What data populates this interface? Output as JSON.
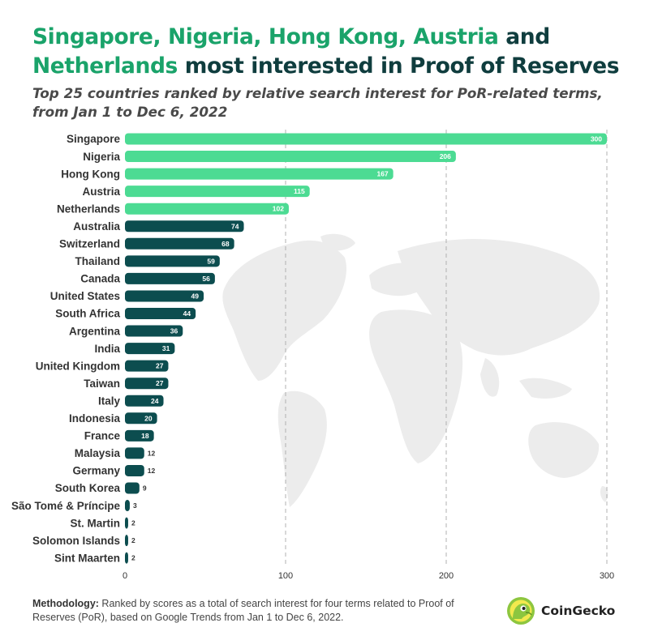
{
  "title": {
    "part1": "Singapore, Nigeria, Hong Kong, Austria",
    "part2": " and ",
    "part3": "Netherlands",
    "part4": " most interested in Proof of Reserves"
  },
  "subtitle": "Top 25 countries ranked by relative search interest for PoR-related terms, from Jan 1 to Dec 6, 2022",
  "methodology": {
    "label": "Methodology:",
    "text": " Ranked by scores as a total of search interest for four terms related to Proof of Reserves (PoR), based on Google Trends from Jan 1 to Dec 6, 2022."
  },
  "brand": {
    "name": "CoinGecko",
    "logo_icon": "gecko-logo-icon"
  },
  "colors": {
    "top5": "#4cdb93",
    "rest": "#0c4d4f",
    "title_dark": "#0f3d3e",
    "title_accent": "#1aa36a"
  },
  "chart_data": {
    "type": "bar",
    "orientation": "horizontal",
    "categories": [
      "Singapore",
      "Nigeria",
      "Hong Kong",
      "Austria",
      "Netherlands",
      "Australia",
      "Switzerland",
      "Thailand",
      "Canada",
      "United States",
      "South Africa",
      "Argentina",
      "India",
      "United Kingdom",
      "Taiwan",
      "Italy",
      "Indonesia",
      "France",
      "Malaysia",
      "Germany",
      "South Korea",
      "São Tomé & Príncipe",
      "St. Martin",
      "Solomon Islands",
      "Sint Maarten"
    ],
    "values": [
      300,
      206,
      167,
      115,
      102,
      74,
      68,
      59,
      56,
      49,
      44,
      36,
      31,
      27,
      27,
      24,
      20,
      18,
      12,
      12,
      9,
      3,
      2,
      2,
      2
    ],
    "highlight_top_n": 5,
    "xlim": [
      0,
      300
    ],
    "xticks": [
      0,
      100,
      200,
      300
    ],
    "xlabel": "",
    "ylabel": "",
    "grid": "vertical dashed",
    "legend": "none"
  }
}
